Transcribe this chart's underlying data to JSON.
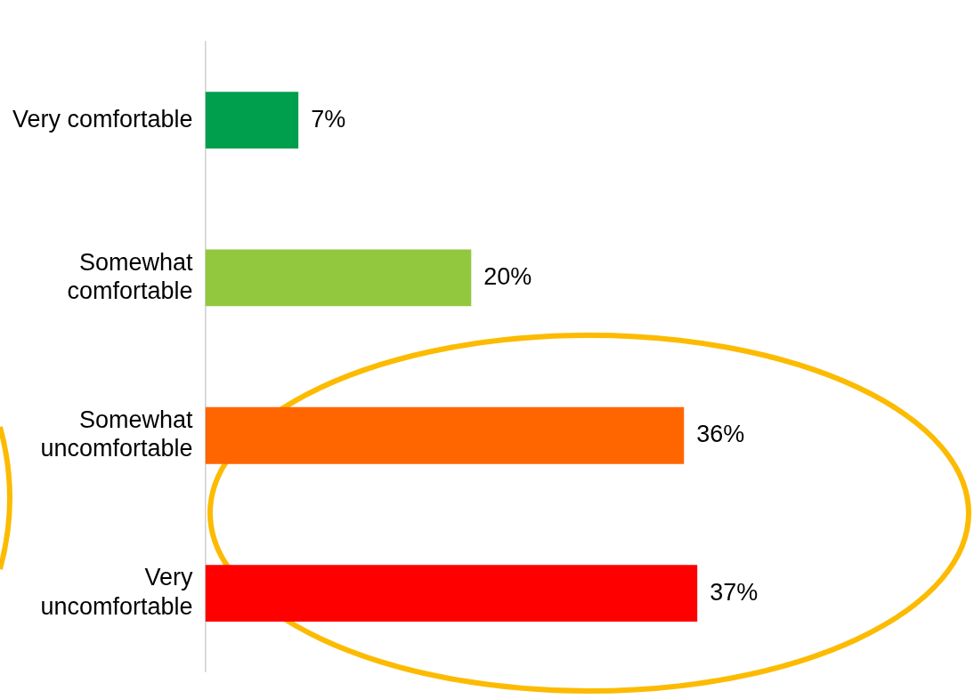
{
  "chart_data": {
    "type": "bar",
    "orientation": "horizontal",
    "categories": [
      "Very comfortable",
      "Somewhat comfortable",
      "Somewhat uncomfortable",
      "Very uncomfortable"
    ],
    "values": [
      7,
      20,
      36,
      37
    ],
    "colors": [
      "#009f4d",
      "#92c83e",
      "#ff6600",
      "#ff0000"
    ],
    "value_labels": [
      "7%",
      "20%",
      "36%",
      "37%"
    ],
    "grid": false,
    "legend": false,
    "tick_labels": "y"
  }
}
